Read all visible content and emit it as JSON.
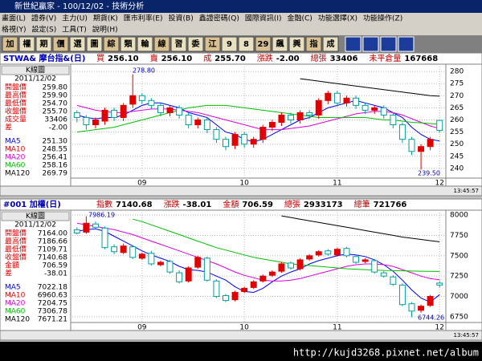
{
  "window_title": "新世紀贏家 - 100/12/02 - 技術分析",
  "menu_rows": [
    [
      "畫面(L)",
      "證券(V)",
      "主力(U)",
      "期貨(K)",
      "匯市利率(E)",
      "投資(B)",
      "鑫證密碼(Q)",
      "國際資訊(I)",
      "金融(C)",
      "功能選擇(X)",
      "功能操作(Z)"
    ],
    [
      "格視(Y)",
      "設定(S)",
      "工具(T)",
      "說明(H)"
    ]
  ],
  "toolbar": [
    "加",
    "權",
    "期",
    "價",
    "選",
    "圖",
    "綜",
    "類",
    "輪",
    "線",
    "習",
    "委",
    "江",
    "9",
    "8",
    "29",
    "飆",
    "興",
    "指",
    "成"
  ],
  "panels": [
    {
      "symbol": "STWA& 摩台指&(日)",
      "quote": [
        {
          "label": "買",
          "value": "256.10"
        },
        {
          "label": "賣",
          "value": "256.10"
        },
        {
          "label": "成",
          "value": "255.70"
        },
        {
          "label": "漲跌",
          "value": "-2.00"
        },
        {
          "label": "總張",
          "value": "33406"
        },
        {
          "label": "未平倉量",
          "value": "167668"
        }
      ],
      "chart_label": "K線圖",
      "date": "2011/12/02",
      "info": [
        {
          "label": "開盤價",
          "value": "259.80"
        },
        {
          "label": "最高價",
          "value": "259.90"
        },
        {
          "label": "最低價",
          "value": "254.70"
        },
        {
          "label": "收盤價",
          "value": "255.70"
        },
        {
          "label": "成交量",
          "value": "33406"
        },
        {
          "label": "差",
          "value": "-2.00"
        }
      ],
      "ma_info": [
        {
          "label": "MA5",
          "value": "251.30",
          "color": "#0000ff"
        },
        {
          "label": "MA10",
          "value": "248.55",
          "color": "#e00000"
        },
        {
          "label": "MA20",
          "value": "256.41",
          "color": "#e000e0"
        },
        {
          "label": "MA60",
          "value": "258.16",
          "color": "#00c000"
        },
        {
          "label": "MA120",
          "value": "269.79",
          "color": "#000000"
        }
      ],
      "annotations": [
        "278.80",
        "239.50"
      ],
      "time": "13:45:57",
      "ylim": [
        236,
        283
      ],
      "yticks": [
        240,
        245,
        250,
        255,
        260,
        265,
        270,
        275,
        280
      ],
      "xticks": [
        {
          "value": 7,
          "label": "09"
        },
        {
          "value": 18,
          "label": "10"
        },
        {
          "value": 28,
          "label": "11"
        },
        {
          "value": 39,
          "label": "12"
        }
      ],
      "open": [
        263,
        261,
        258,
        259.5,
        264,
        261,
        266.5,
        270,
        268,
        266,
        263,
        265,
        262,
        258,
        260,
        256,
        252,
        249.5,
        254,
        250,
        252,
        257,
        259,
        262,
        260,
        263,
        262,
        268,
        271,
        267,
        269,
        266,
        264,
        265,
        262,
        258,
        252,
        247,
        249,
        259.8
      ],
      "high": [
        264,
        262,
        261,
        265,
        265,
        267,
        278.8,
        271,
        269,
        267,
        266,
        266,
        263,
        261,
        261,
        257,
        253,
        255,
        255,
        253,
        258,
        260,
        263,
        263,
        264,
        264,
        269,
        272,
        272,
        270,
        270,
        267,
        266,
        266,
        263,
        259,
        253,
        250,
        253,
        259.9
      ],
      "low": [
        259,
        256,
        256.5,
        258,
        259.5,
        259.5,
        265,
        266.5,
        264.5,
        261.5,
        261.5,
        260.5,
        256.5,
        256.5,
        254.5,
        250.5,
        247.5,
        248,
        248.5,
        248.5,
        250.5,
        255.5,
        257.5,
        258.5,
        258.5,
        260.5,
        260.5,
        266.5,
        265.5,
        265.5,
        264.5,
        262.5,
        262.5,
        260.5,
        256.5,
        250.5,
        245.5,
        239.5,
        247.5,
        254.7
      ],
      "close": [
        261,
        258,
        260,
        264,
        261,
        266,
        270,
        268,
        266,
        263,
        265,
        262,
        258,
        260,
        256,
        252,
        249,
        254,
        250,
        252,
        257,
        259,
        262,
        260,
        263,
        262,
        268,
        271,
        267,
        269,
        266,
        264,
        265,
        262,
        258,
        252,
        247,
        249,
        252,
        255.7
      ],
      "lines": [
        {
          "name": "MA5",
          "color": "#0000ff",
          "values": [
            262,
            261,
            260.5,
            261,
            261,
            262,
            264,
            266,
            267,
            267,
            266,
            265,
            263,
            262,
            261,
            258,
            255,
            254,
            252,
            251,
            252,
            254,
            256,
            258,
            260,
            261,
            263,
            265,
            266,
            267,
            268,
            267,
            266,
            265,
            263,
            261,
            257,
            254,
            252,
            251.3
          ]
        },
        {
          "name": "MA20",
          "color": "#e000e0",
          "values": [
            266,
            265,
            264,
            263.5,
            263,
            263,
            263.5,
            264,
            264.5,
            264.5,
            264.5,
            264,
            263.5,
            263,
            262,
            261,
            260,
            259,
            258,
            257,
            256,
            256,
            256,
            256.5,
            257,
            257.5,
            258.5,
            259.5,
            260.5,
            261.5,
            262.5,
            263,
            263.5,
            263.5,
            263,
            262,
            260.5,
            259,
            257.5,
            256.41
          ]
        },
        {
          "name": "MA60",
          "color": "#00c000",
          "values": [
            255,
            255.5,
            256,
            256.5,
            257,
            258,
            259,
            260,
            261,
            262,
            263,
            264,
            265,
            265.5,
            266,
            266,
            266,
            265.5,
            265,
            264.5,
            264,
            263.5,
            263,
            262.5,
            262,
            261.5,
            261,
            261,
            261,
            261,
            261,
            261,
            260.5,
            260,
            260,
            259.5,
            259,
            258.8,
            258.5,
            258.16
          ]
        },
        {
          "name": "MA120",
          "color": "#000000",
          "values": [
            null,
            null,
            null,
            null,
            null,
            null,
            null,
            null,
            null,
            null,
            null,
            null,
            null,
            null,
            null,
            null,
            null,
            null,
            null,
            null,
            null,
            null,
            null,
            null,
            277,
            276.5,
            276,
            275.5,
            275,
            274.5,
            274,
            273.5,
            273,
            272.5,
            272,
            271.5,
            271,
            270.5,
            270,
            269.79
          ]
        }
      ]
    },
    {
      "symbol": "#001 加權(日)",
      "quote": [
        {
          "label": "指數",
          "value": "7140.68"
        },
        {
          "label": "漲跌",
          "value": "-38.01"
        },
        {
          "label": "金額",
          "value": "706.59"
        },
        {
          "label": "總張",
          "value": "2933173"
        },
        {
          "label": "總筆",
          "value": "721766"
        }
      ],
      "chart_label": "K線圖",
      "date": "2011/12/02",
      "info": [
        {
          "label": "開盤價",
          "value": "7164.00"
        },
        {
          "label": "最高價",
          "value": "7186.66"
        },
        {
          "label": "最低價",
          "value": "7109.71"
        },
        {
          "label": "收盤價",
          "value": "7140.68"
        },
        {
          "label": "金額",
          "value": "706.59"
        },
        {
          "label": "差",
          "value": "-38.01"
        }
      ],
      "ma_info": [
        {
          "label": "MA5",
          "value": "7022.18",
          "color": "#0000ff"
        },
        {
          "label": "MA10",
          "value": "6960.63",
          "color": "#e00000"
        },
        {
          "label": "MA20",
          "value": "7204.75",
          "color": "#e000e0"
        },
        {
          "label": "MA60",
          "value": "7306.78",
          "color": "#00c000"
        },
        {
          "label": "MA120",
          "value": "7671.21",
          "color": "#000000"
        }
      ],
      "annotations": [
        "7986.19",
        "6744.26"
      ],
      "time": "13:45:57",
      "ylim": [
        6680,
        8060
      ],
      "yticks": [
        6750,
        7000,
        7250,
        7500,
        7750,
        8000
      ],
      "xticks": [
        {
          "value": 7,
          "label": "09"
        },
        {
          "value": 18,
          "label": "10"
        },
        {
          "value": 28,
          "label": "11"
        },
        {
          "value": 39,
          "label": "12"
        }
      ],
      "open": [
        7820,
        7790,
        7890,
        7840,
        7610,
        7540,
        7610,
        7470,
        7530,
        7390,
        7430,
        7290,
        7190,
        7360,
        7470,
        7190,
        7010,
        6960,
        7060,
        7110,
        7190,
        7260,
        7310,
        7410,
        7340,
        7460,
        7510,
        7560,
        7510,
        7590,
        7490,
        7430,
        7440,
        7290,
        7240,
        7140,
        6910,
        6830,
        6890,
        7164
      ],
      "high": [
        7850,
        7986.19,
        7920,
        7860,
        7640,
        7650,
        7630,
        7540,
        7560,
        7440,
        7450,
        7320,
        7370,
        7500,
        7490,
        7210,
        7030,
        7070,
        7120,
        7200,
        7270,
        7320,
        7420,
        7430,
        7470,
        7520,
        7570,
        7580,
        7600,
        7610,
        7510,
        7470,
        7460,
        7310,
        7260,
        7160,
        6930,
        6900,
        7020,
        7186.66
      ],
      "low": [
        7760,
        7770,
        7830,
        7580,
        7520,
        7520,
        7460,
        7450,
        7380,
        7370,
        7280,
        7160,
        7170,
        7340,
        7180,
        6980,
        6930,
        6940,
        7040,
        7090,
        7170,
        7240,
        7290,
        7330,
        7320,
        7440,
        7490,
        7500,
        7490,
        7480,
        7400,
        7410,
        7280,
        7230,
        7130,
        6880,
        6744.26,
        6800,
        6870,
        7109.71
      ],
      "close": [
        7780,
        7900,
        7850,
        7600,
        7550,
        7620,
        7480,
        7520,
        7400,
        7420,
        7300,
        7180,
        7350,
        7480,
        7200,
        7000,
        6950,
        7050,
        7100,
        7180,
        7250,
        7300,
        7400,
        7350,
        7450,
        7500,
        7550,
        7520,
        7580,
        7500,
        7420,
        7450,
        7300,
        7250,
        7150,
        6900,
        6820,
        6880,
        7000,
        7140.68
      ],
      "lines": [
        {
          "name": "MA5",
          "color": "#0000ff",
          "values": [
            7800,
            7820,
            7830,
            7800,
            7740,
            7680,
            7620,
            7560,
            7510,
            7470,
            7430,
            7370,
            7330,
            7320,
            7300,
            7250,
            7200,
            7120,
            7060,
            7050,
            7100,
            7180,
            7250,
            7300,
            7340,
            7400,
            7440,
            7470,
            7500,
            7520,
            7510,
            7490,
            7450,
            7390,
            7310,
            7200,
            7080,
            6980,
            6930,
            7022.18
          ]
        },
        {
          "name": "MA20",
          "color": "#e000e0",
          "values": [
            7900,
            7880,
            7860,
            7840,
            7820,
            7790,
            7760,
            7720,
            7680,
            7640,
            7600,
            7560,
            7520,
            7480,
            7440,
            7400,
            7350,
            7300,
            7260,
            7230,
            7200,
            7190,
            7190,
            7200,
            7220,
            7250,
            7280,
            7310,
            7340,
            7370,
            7390,
            7400,
            7400,
            7390,
            7370,
            7330,
            7290,
            7250,
            7220,
            7204.75
          ]
        },
        {
          "name": "MA60",
          "color": "#00c000",
          "values": [
            null,
            null,
            null,
            null,
            null,
            null,
            7950,
            7920,
            7880,
            7840,
            7800,
            7760,
            7720,
            7680,
            7640,
            7600,
            7570,
            7540,
            7510,
            7480,
            7460,
            7440,
            7420,
            7400,
            7390,
            7380,
            7370,
            7360,
            7350,
            7340,
            7335,
            7330,
            7325,
            7320,
            7318,
            7315,
            7312,
            7310,
            7308,
            7306.78
          ]
        },
        {
          "name": "MA120",
          "color": "#000000",
          "values": [
            null,
            null,
            null,
            null,
            null,
            null,
            null,
            null,
            null,
            null,
            null,
            null,
            null,
            null,
            null,
            null,
            null,
            null,
            null,
            null,
            null,
            null,
            7990,
            7970,
            7950,
            7930,
            7910,
            7890,
            7870,
            7850,
            7830,
            7810,
            7790,
            7770,
            7750,
            7730,
            7715,
            7700,
            7685,
            7671.21
          ]
        }
      ]
    }
  ],
  "watermark": "http://kujd3268.pixnet.net/album"
}
